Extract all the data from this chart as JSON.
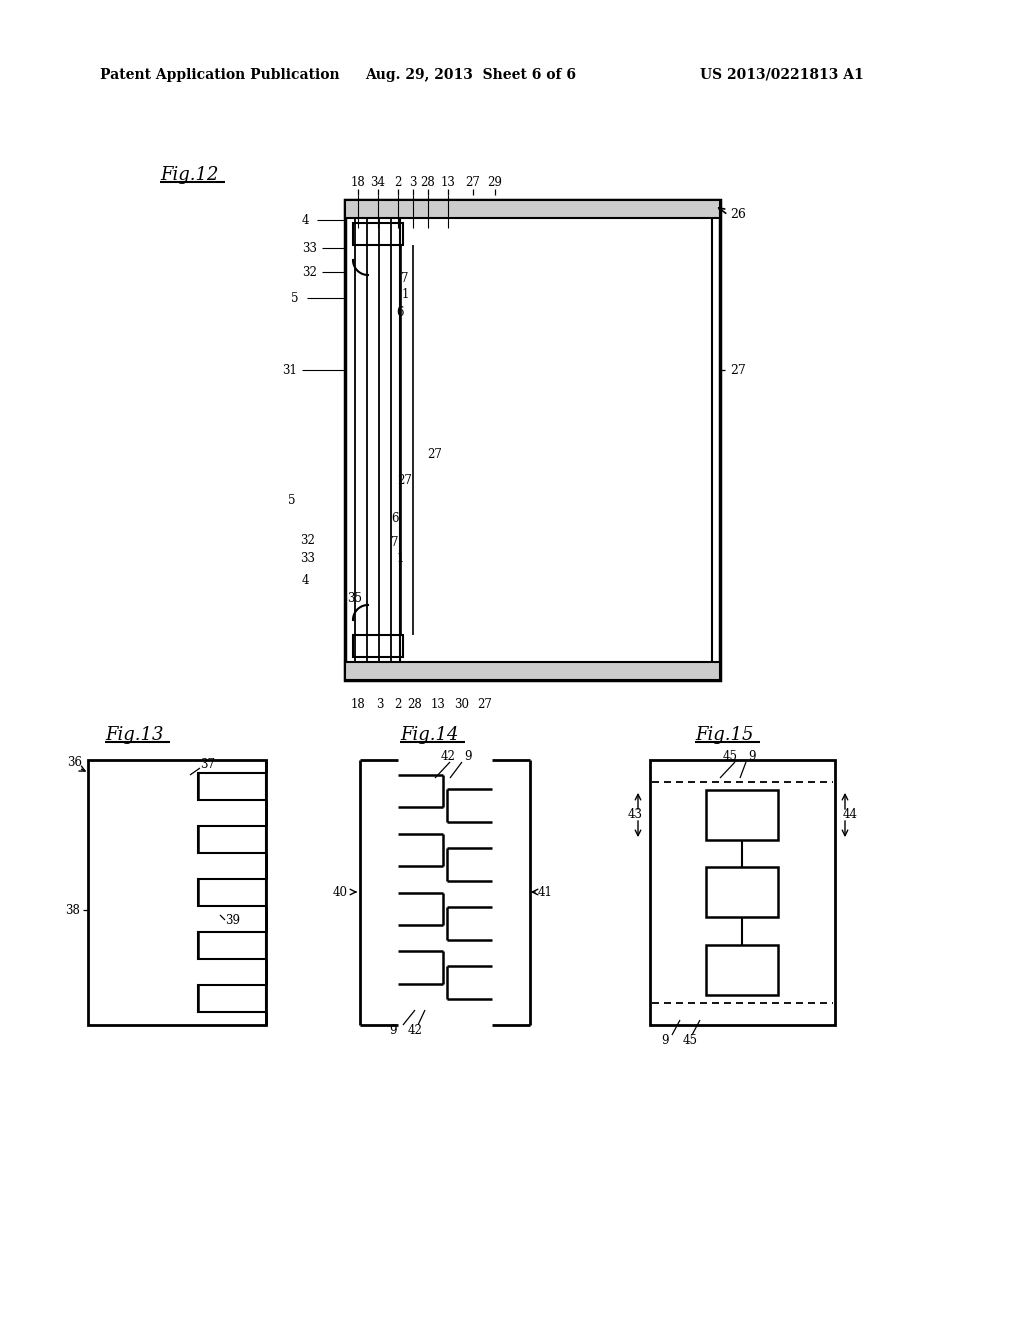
{
  "header_left": "Patent Application Publication",
  "header_center": "Aug. 29, 2013  Sheet 6 of 6",
  "header_right": "US 2013/0221813 A1",
  "bg_color": "#ffffff",
  "line_color": "#000000"
}
